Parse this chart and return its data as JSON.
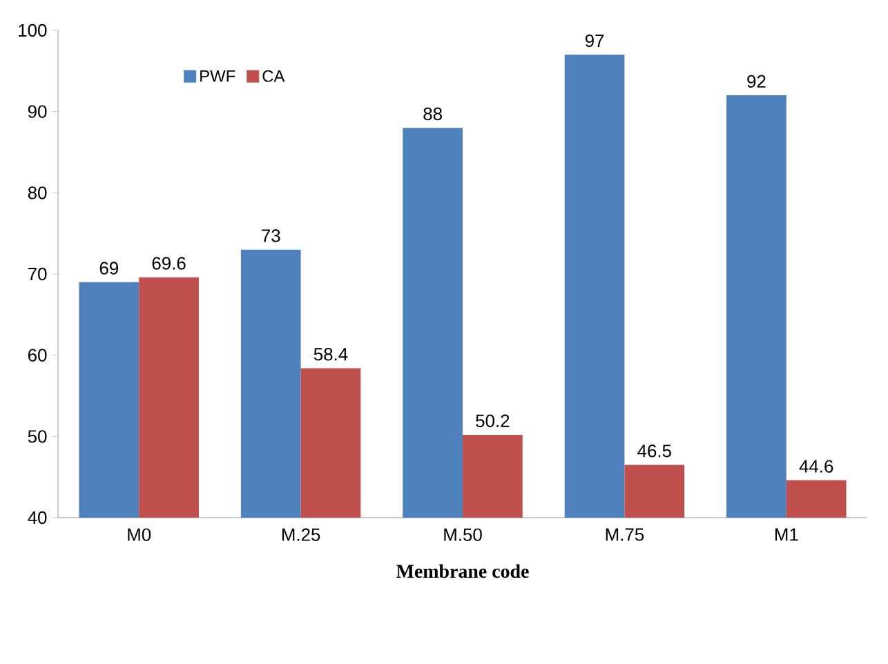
{
  "chart_data": {
    "type": "bar",
    "xlabel": "Membrane code",
    "categories": [
      "M0",
      "M.25",
      "M.50",
      "M.75",
      "M1"
    ],
    "series": [
      {
        "name": "PWF",
        "color": "#4f81bd",
        "values": [
          69,
          73,
          88,
          97,
          92
        ]
      },
      {
        "name": "CA",
        "color": "#c0504d",
        "values": [
          69.6,
          58.4,
          50.2,
          46.5,
          44.6
        ]
      }
    ],
    "ylim": [
      40,
      100
    ],
    "yticks": [
      40,
      50,
      60,
      70,
      80,
      90,
      100
    ],
    "data_labels": true,
    "legend": "top left",
    "grid": false
  }
}
